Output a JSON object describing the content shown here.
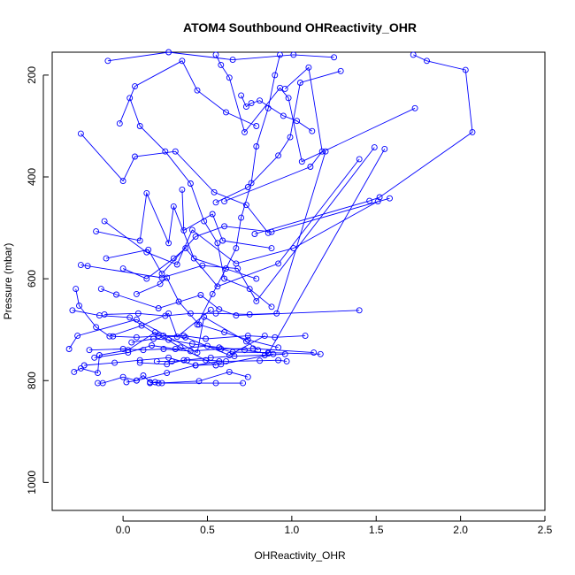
{
  "chart_data": {
    "type": "line",
    "title": "ATOM4 Southbound OHReactivity_OHR",
    "xlabel": "OHReactivity_OHR",
    "ylabel": "Pressure (mbar)",
    "xlim": [
      -0.42,
      2.5
    ],
    "ylim": [
      1055,
      155
    ],
    "y_reversed": true,
    "x_ticks": [
      0.0,
      0.5,
      1.0,
      1.5,
      2.0,
      2.5
    ],
    "x_tick_labels": [
      "0.0",
      "0.5",
      "1.0",
      "1.5",
      "2.0",
      "2.5"
    ],
    "y_ticks": [
      200,
      400,
      600,
      800,
      1000
    ],
    "y_tick_labels": [
      "200",
      "400",
      "600",
      "800",
      "1000"
    ],
    "grid": false,
    "legend": "none",
    "series_color": "#0000ff",
    "marker": "open-circle",
    "series": [
      {
        "x": [
          -0.09,
          0.27,
          0.65,
          1.01,
          1.25
        ],
        "y": [
          172,
          155,
          170,
          160,
          165
        ]
      },
      {
        "x": [
          1.72,
          1.8,
          2.03,
          2.07,
          1.52,
          1.46,
          0.78
        ],
        "y": [
          160,
          172,
          190,
          312,
          440,
          447,
          512
        ]
      },
      {
        "x": [
          -0.02,
          0.07,
          0.35,
          0.44,
          0.61,
          0.79
        ],
        "y": [
          295,
          222,
          172,
          230,
          273,
          300
        ]
      },
      {
        "x": [
          -0.25,
          0.0,
          0.07,
          0.31,
          0.54,
          0.73,
          0.86
        ],
        "y": [
          315,
          408,
          360,
          350,
          430,
          455,
          510
        ]
      },
      {
        "x": [
          0.96,
          1.1,
          1.18,
          1.11,
          0.6
        ],
        "y": [
          227,
          185,
          350,
          380,
          448
        ]
      },
      {
        "x": [
          1.29,
          1.05,
          0.99,
          0.92,
          0.74,
          0.55
        ],
        "y": [
          192,
          215,
          322,
          358,
          420,
          450
        ]
      },
      {
        "x": [
          0.35,
          0.36,
          0.53,
          0.59,
          0.88
        ],
        "y": [
          425,
          505,
          473,
          525,
          540
        ]
      },
      {
        "x": [
          -0.11,
          0.14,
          0.32,
          0.41,
          0.67,
          1.01,
          1.51
        ],
        "y": [
          487,
          548,
          572,
          504,
          570,
          540,
          448
        ]
      },
      {
        "x": [
          -0.16,
          0.1,
          0.14,
          0.27,
          0.3,
          0.42,
          0.79
        ],
        "y": [
          507,
          525,
          432,
          530,
          458,
          560,
          600
        ]
      },
      {
        "x": [
          -0.25,
          -0.21,
          0.23,
          0.47,
          0.68,
          0.79,
          1.49
        ],
        "y": [
          573,
          575,
          598,
          574,
          580,
          644,
          342
        ]
      },
      {
        "x": [
          0.0,
          0.14,
          0.3,
          0.37,
          0.56,
          0.92,
          1.4
        ],
        "y": [
          580,
          600,
          560,
          540,
          615,
          570,
          365
        ]
      },
      {
        "x": [
          -0.13,
          -0.04,
          0.21,
          0.46,
          0.57,
          0.67,
          1.4
        ],
        "y": [
          620,
          631,
          658,
          632,
          660,
          672,
          662
        ]
      },
      {
        "x": [
          -0.28,
          -0.26,
          -0.16,
          -0.08,
          0.11,
          0.27,
          0.32,
          0.52
        ],
        "y": [
          620,
          653,
          695,
          713,
          692,
          668,
          714,
          661
        ]
      },
      {
        "x": [
          -0.3,
          -0.14,
          0.04,
          0.21,
          0.37,
          0.63,
          0.84
        ],
        "y": [
          662,
          672,
          676,
          712,
          715,
          750,
          712
        ]
      },
      {
        "x": [
          -0.32,
          -0.27,
          0.08,
          0.44,
          0.48,
          0.73,
          0.8
        ],
        "y": [
          738,
          712,
          680,
          745,
          675,
          723,
          740
        ]
      },
      {
        "x": [
          -0.29,
          -0.25,
          -0.15,
          -0.14,
          0.03,
          0.19,
          0.34,
          0.55
        ],
        "y": [
          783,
          776,
          785,
          750,
          740,
          705,
          735,
          770
        ]
      },
      {
        "x": [
          -0.15,
          -0.12,
          0.0,
          0.08,
          0.26,
          0.43,
          0.57
        ],
        "y": [
          805,
          805,
          793,
          800,
          785,
          770,
          762
        ]
      },
      {
        "x": [
          0.02,
          0.08,
          0.12,
          0.16,
          0.21,
          0.45,
          0.63,
          0.74
        ],
        "y": [
          803,
          800,
          790,
          803,
          805,
          801,
          783,
          793
        ]
      },
      {
        "x": [
          0.16,
          0.19,
          0.23,
          0.55,
          0.71
        ],
        "y": [
          805,
          803,
          805,
          805,
          805
        ]
      },
      {
        "x": [
          0.2,
          0.29,
          0.38,
          0.49,
          0.61,
          0.81,
          0.92,
          0.97
        ],
        "y": [
          762,
          762,
          760,
          760,
          762,
          761,
          760,
          762
        ]
      },
      {
        "x": [
          -0.17,
          0.03,
          0.17,
          0.31,
          0.5,
          0.65,
          0.86,
          1.17
        ],
        "y": [
          755,
          745,
          731,
          738,
          732,
          744,
          745,
          748
        ]
      },
      {
        "x": [
          -0.06,
          0.08,
          0.24,
          0.36,
          0.49,
          0.74,
          0.9,
          1.08
        ],
        "y": [
          713,
          715,
          712,
          712,
          718,
          712,
          715,
          712
        ]
      },
      {
        "x": [
          -0.11,
          0.09,
          0.25,
          0.4,
          0.55,
          0.75,
          0.91,
          1.2
        ],
        "y": [
          670,
          668,
          673,
          668,
          668,
          670,
          668,
          350
        ]
      },
      {
        "x": [
          0.05,
          0.18,
          0.27,
          0.41,
          0.57,
          0.72,
          0.86,
          1.55
        ],
        "y": [
          725,
          718,
          720,
          728,
          735,
          740,
          747,
          345
        ]
      },
      {
        "x": [
          -0.2,
          0.0,
          0.12,
          0.24,
          0.4,
          0.58,
          0.77,
          1.13
        ],
        "y": [
          740,
          738,
          740,
          738,
          742,
          738,
          737,
          745
        ]
      },
      {
        "x": [
          0.1,
          0.26,
          0.36,
          0.52,
          0.66,
          0.84,
          0.96
        ],
        "y": [
          765,
          768,
          760,
          755,
          752,
          750,
          748
        ]
      },
      {
        "x": [
          -0.23,
          -0.05,
          0.1,
          0.27,
          0.43,
          0.58,
          0.89
        ],
        "y": [
          770,
          765,
          760,
          755,
          770,
          768,
          748
        ]
      },
      {
        "x": [
          0.08,
          0.22,
          0.26,
          0.33,
          0.45,
          0.6,
          0.74,
          0.92
        ],
        "y": [
          630,
          610,
          598,
          645,
          690,
          705,
          720,
          735
        ]
      },
      {
        "x": [
          -0.1,
          0.15,
          0.23,
          0.43,
          0.6,
          0.88,
          1.58
        ],
        "y": [
          560,
          543,
          590,
          517,
          497,
          508,
          442
        ]
      },
      {
        "x": [
          0.7,
          0.73,
          0.76,
          0.81,
          0.95,
          1.03,
          1.12
        ],
        "y": [
          240,
          262,
          255,
          250,
          280,
          290,
          310
        ]
      },
      {
        "x": [
          0.55,
          0.58,
          0.63,
          0.72,
          0.93,
          0.98,
          1.06,
          1.73
        ],
        "y": [
          160,
          180,
          205,
          312,
          225,
          245,
          370,
          265
        ]
      },
      {
        "x": [
          0.04,
          0.1,
          0.25,
          0.4,
          0.48,
          0.56,
          0.6,
          0.75,
          0.88
        ],
        "y": [
          245,
          300,
          350,
          413,
          487,
          530,
          600,
          620,
          655
        ]
      },
      {
        "x": [
          0.93,
          0.9,
          0.86,
          0.79,
          0.76,
          0.7,
          0.67,
          0.61,
          0.53,
          0.44
        ],
        "y": [
          160,
          200,
          265,
          340,
          412,
          480,
          540,
          580,
          630,
          690
        ]
      }
    ]
  }
}
